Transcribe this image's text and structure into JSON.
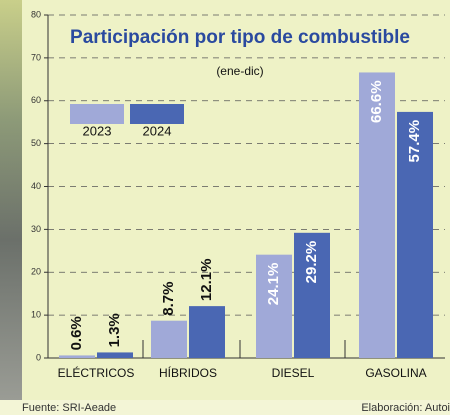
{
  "chart_data": {
    "type": "bar",
    "title": "Participación por tipo de combustible",
    "subtitle": "(ene-dic)",
    "categories": [
      "ELÉCTRICOS",
      "HÍBRIDOS",
      "DIESEL",
      "GASOLINA"
    ],
    "series": [
      {
        "name": "2023",
        "color": "#a0a9d8",
        "values": [
          0.6,
          8.7,
          24.1,
          66.6
        ],
        "value_labels": [
          "0.6%",
          "8.7%",
          "24.1%",
          "66.6%"
        ]
      },
      {
        "name": "2024",
        "color": "#4a67b3",
        "values": [
          1.3,
          12.1,
          29.2,
          57.4
        ],
        "value_labels": [
          "1.3%",
          "12.1%",
          "29.2%",
          "57.4%"
        ]
      }
    ],
    "ylim": [
      0,
      80
    ],
    "yticks": [
      0,
      10,
      20,
      30,
      40,
      50,
      60,
      70,
      80
    ],
    "grid": true,
    "source": "Fuente: SRI-Aeade",
    "credit": "Elaboración: Autoi"
  }
}
